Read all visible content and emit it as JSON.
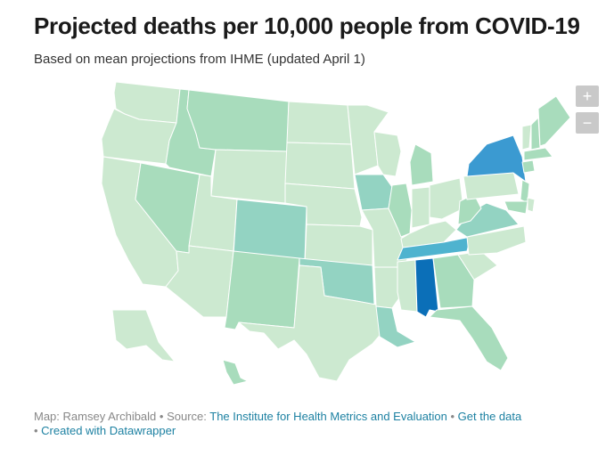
{
  "header": {
    "title": "Projected deaths per 10,000 people from COVID-19",
    "subtitle": "Based on mean projections from IHME (updated April 1)"
  },
  "map_controls": {
    "zoom_in_label": "+",
    "zoom_out_label": "−"
  },
  "footer": {
    "map_credit": "Map: Ramsey Archibald",
    "separator": " • ",
    "source_label": "Source: ",
    "source_link": "The Institute for Health Metrics and Evaluation",
    "get_data_link": "Get the data",
    "created_with_link": "Created with Datawrapper"
  },
  "colors": {
    "level_1": "#cce9d0",
    "level_2": "#a8dcbc",
    "level_3": "#93d3c2",
    "level_4": "#4fb3cf",
    "level_5": "#3b9ad1",
    "level_6": "#0b6fb8",
    "border": "#ffffff"
  },
  "states": [
    {
      "id": "WA",
      "level": 1
    },
    {
      "id": "OR",
      "level": 1
    },
    {
      "id": "CA",
      "level": 1
    },
    {
      "id": "ID",
      "level": 2
    },
    {
      "id": "NV",
      "level": 2
    },
    {
      "id": "MT",
      "level": 2
    },
    {
      "id": "WY",
      "level": 1
    },
    {
      "id": "UT",
      "level": 1
    },
    {
      "id": "AZ",
      "level": 1
    },
    {
      "id": "CO",
      "level": 3
    },
    {
      "id": "NM",
      "level": 2
    },
    {
      "id": "ND",
      "level": 1
    },
    {
      "id": "SD",
      "level": 1
    },
    {
      "id": "NE",
      "level": 1
    },
    {
      "id": "KS",
      "level": 1
    },
    {
      "id": "OK",
      "level": 3
    },
    {
      "id": "TX",
      "level": 1
    },
    {
      "id": "MN",
      "level": 1
    },
    {
      "id": "IA",
      "level": 3
    },
    {
      "id": "MO",
      "level": 1
    },
    {
      "id": "AR",
      "level": 1
    },
    {
      "id": "LA",
      "level": 3
    },
    {
      "id": "WI",
      "level": 1
    },
    {
      "id": "IL",
      "level": 2
    },
    {
      "id": "MI",
      "level": 2
    },
    {
      "id": "IN",
      "level": 1
    },
    {
      "id": "OH",
      "level": 1
    },
    {
      "id": "KY",
      "level": 1
    },
    {
      "id": "TN",
      "level": 4
    },
    {
      "id": "MS",
      "level": 1
    },
    {
      "id": "AL",
      "level": 6
    },
    {
      "id": "GA",
      "level": 2
    },
    {
      "id": "FL",
      "level": 2
    },
    {
      "id": "SC",
      "level": 1
    },
    {
      "id": "NC",
      "level": 1
    },
    {
      "id": "VA",
      "level": 3
    },
    {
      "id": "WV",
      "level": 2
    },
    {
      "id": "PA",
      "level": 1
    },
    {
      "id": "NY",
      "level": 5
    },
    {
      "id": "NJ",
      "level": 2
    },
    {
      "id": "VT",
      "level": 1
    },
    {
      "id": "NH",
      "level": 2
    },
    {
      "id": "ME",
      "level": 2
    },
    {
      "id": "MA",
      "level": 2
    },
    {
      "id": "CT",
      "level": 2
    },
    {
      "id": "MD",
      "level": 2
    },
    {
      "id": "DE",
      "level": 1
    },
    {
      "id": "AK",
      "level": 1
    },
    {
      "id": "HI",
      "level": 2
    }
  ]
}
